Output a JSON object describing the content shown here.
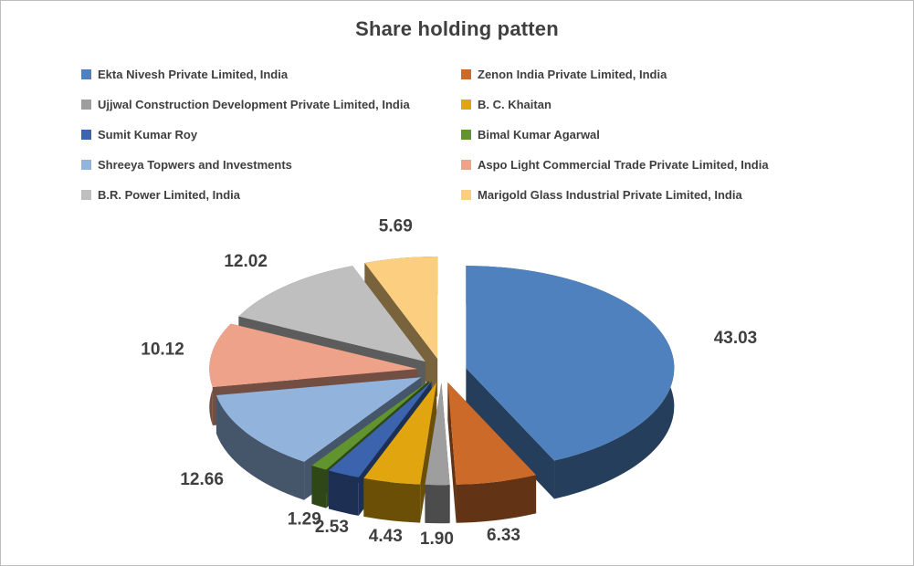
{
  "window": {
    "background": "#FFFFFF",
    "border_color": "#BDBDBD"
  },
  "chart_data": {
    "type": "pie",
    "variant": "3d-exploded",
    "title": "Share holding patten",
    "legend_position": "top-two-columns",
    "start_angle_deg": 0,
    "clockwise": true,
    "value_format": "2-decimals",
    "categories": [
      "Ekta Nivesh Private Limited, India",
      "Zenon India Private Limited, India",
      "Ujjwal Construction Development Private Limited, India",
      "B. C. Khaitan",
      "Sumit Kumar Roy",
      "Bimal Kumar Agarwal",
      "Shreeya Topwers and Investments",
      "Aspo Light Commercial Trade Private Limited, India",
      "B.R. Power Limited, India",
      "Marigold Glass Industrial Private Limited, India"
    ],
    "values": [
      43.03,
      6.33,
      1.9,
      4.43,
      2.53,
      1.29,
      12.66,
      10.12,
      12.02,
      5.69
    ],
    "colors": [
      "#4E81BD",
      "#CC6B29",
      "#9E9E9E",
      "#E0A50F",
      "#3C63AE",
      "#61942F",
      "#92B4DC",
      "#EFA28A",
      "#BFBFBF",
      "#FBCF7F"
    ],
    "title_color": "#3F3F3F",
    "label_color": "#3F3F3F",
    "legend_text_color": "#3F3F3F"
  }
}
